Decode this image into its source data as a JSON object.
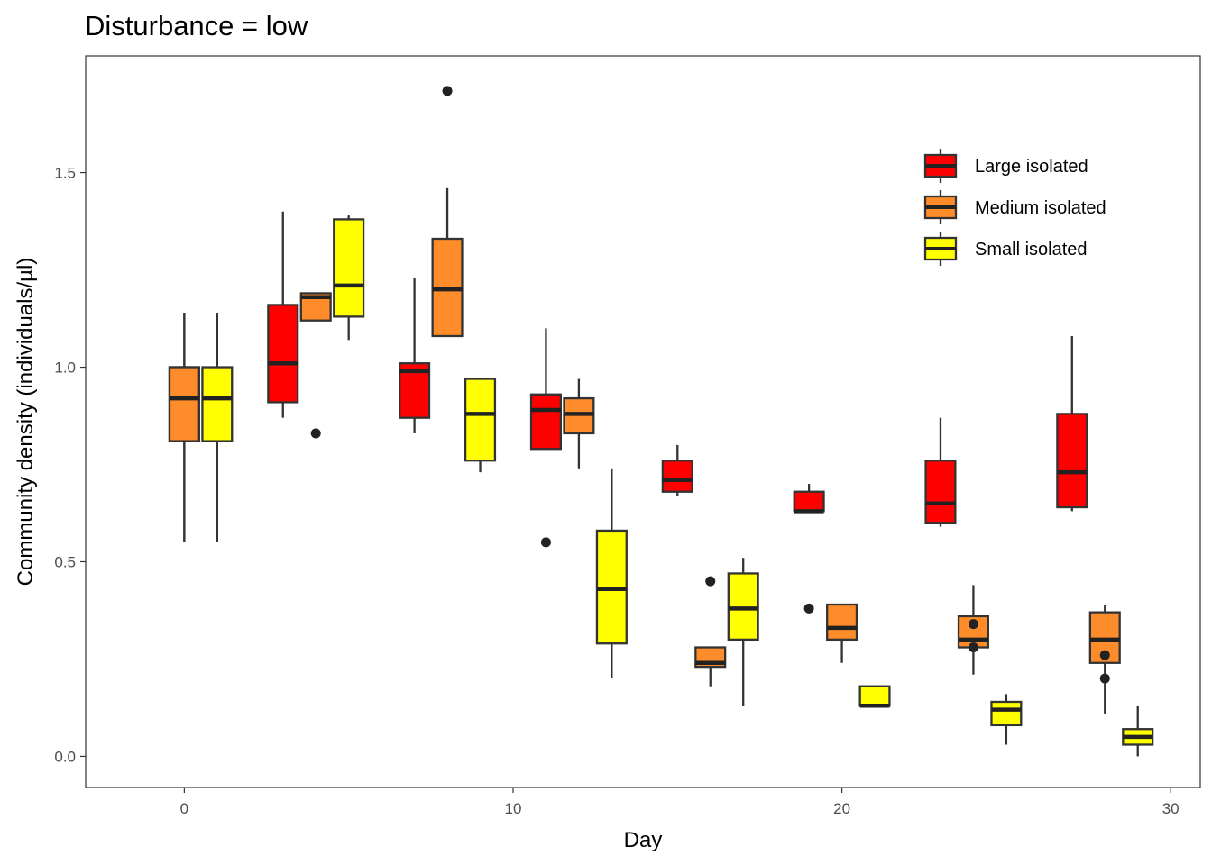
{
  "chart_data": {
    "type": "boxplot",
    "title": "Disturbance = low",
    "xlabel": "Day",
    "ylabel": "Community density (individuals/µl)",
    "xlim": [
      -3,
      30.9
    ],
    "ylim": [
      -0.08,
      1.8
    ],
    "xticks": [
      0,
      10,
      20,
      30
    ],
    "yticks": [
      0.0,
      0.5,
      1.0,
      1.5
    ],
    "ytick_labels": [
      "0.0",
      "0.5",
      "1.0",
      "1.5"
    ],
    "grid": false,
    "legend_position": "top-right",
    "series": [
      {
        "name": "Large isolated",
        "color": "#ff0000",
        "boxes": [
          {
            "day": 0,
            "whisker_low": 0.55,
            "q1": 0.81,
            "median": 0.92,
            "q3": 1.0,
            "whisker_high": 1.14,
            "outliers": []
          },
          {
            "day": 3,
            "whisker_low": 0.87,
            "q1": 0.91,
            "median": 1.01,
            "q3": 1.16,
            "whisker_high": 1.4,
            "outliers": []
          },
          {
            "day": 7,
            "whisker_low": 0.83,
            "q1": 0.87,
            "median": 0.99,
            "q3": 1.01,
            "whisker_high": 1.23,
            "outliers": []
          },
          {
            "day": 11,
            "whisker_low": 0.79,
            "q1": 0.79,
            "median": 0.89,
            "q3": 0.93,
            "whisker_high": 1.1,
            "outliers": [
              0.55
            ]
          },
          {
            "day": 15,
            "whisker_low": 0.67,
            "q1": 0.68,
            "median": 0.71,
            "q3": 0.76,
            "whisker_high": 0.8,
            "outliers": []
          },
          {
            "day": 19,
            "whisker_low": 0.63,
            "q1": 0.63,
            "median": 0.63,
            "q3": 0.68,
            "whisker_high": 0.7,
            "outliers": [
              0.38
            ]
          },
          {
            "day": 23,
            "whisker_low": 0.59,
            "q1": 0.6,
            "median": 0.65,
            "q3": 0.76,
            "whisker_high": 0.87,
            "outliers": []
          },
          {
            "day": 27,
            "whisker_low": 0.63,
            "q1": 0.64,
            "median": 0.73,
            "q3": 0.88,
            "whisker_high": 1.08,
            "outliers": []
          }
        ]
      },
      {
        "name": "Medium isolated",
        "color": "#ff8c2a",
        "boxes": [
          {
            "day": 0,
            "whisker_low": 0.55,
            "q1": 0.81,
            "median": 0.92,
            "q3": 1.0,
            "whisker_high": 1.14,
            "outliers": []
          },
          {
            "day": 4,
            "whisker_low": 1.12,
            "q1": 1.12,
            "median": 1.18,
            "q3": 1.19,
            "whisker_high": 1.19,
            "outliers": [
              0.83
            ]
          },
          {
            "day": 8,
            "whisker_low": 1.08,
            "q1": 1.08,
            "median": 1.2,
            "q3": 1.33,
            "whisker_high": 1.46,
            "outliers": [
              1.71
            ]
          },
          {
            "day": 12,
            "whisker_low": 0.74,
            "q1": 0.83,
            "median": 0.88,
            "q3": 0.92,
            "whisker_high": 0.97,
            "outliers": []
          },
          {
            "day": 16,
            "whisker_low": 0.18,
            "q1": 0.23,
            "median": 0.24,
            "q3": 0.28,
            "whisker_high": 0.28,
            "outliers": [
              0.45
            ]
          },
          {
            "day": 20,
            "whisker_low": 0.24,
            "q1": 0.3,
            "median": 0.33,
            "q3": 0.39,
            "whisker_high": 0.39,
            "outliers": []
          },
          {
            "day": 24,
            "whisker_low": 0.21,
            "q1": 0.28,
            "median": 0.3,
            "q3": 0.36,
            "whisker_high": 0.44,
            "outliers": [
              0.34,
              0.28
            ]
          },
          {
            "day": 28,
            "whisker_low": 0.11,
            "q1": 0.24,
            "median": 0.3,
            "q3": 0.37,
            "whisker_high": 0.39,
            "outliers": [
              0.26,
              0.2
            ]
          }
        ]
      },
      {
        "name": "Small isolated",
        "color": "#ffff00",
        "boxes": [
          {
            "day": 1,
            "whisker_low": 0.55,
            "q1": 0.81,
            "median": 0.92,
            "q3": 1.0,
            "whisker_high": 1.14,
            "outliers": []
          },
          {
            "day": 5,
            "whisker_low": 1.07,
            "q1": 1.13,
            "median": 1.21,
            "q3": 1.38,
            "whisker_high": 1.39,
            "outliers": []
          },
          {
            "day": 9,
            "whisker_low": 0.73,
            "q1": 0.76,
            "median": 0.88,
            "q3": 0.97,
            "whisker_high": 0.97,
            "outliers": []
          },
          {
            "day": 13,
            "whisker_low": 0.2,
            "q1": 0.29,
            "median": 0.43,
            "q3": 0.58,
            "whisker_high": 0.74,
            "outliers": []
          },
          {
            "day": 17,
            "whisker_low": 0.13,
            "q1": 0.3,
            "median": 0.38,
            "q3": 0.47,
            "whisker_high": 0.51,
            "outliers": []
          },
          {
            "day": 21,
            "whisker_low": 0.13,
            "q1": 0.13,
            "median": 0.13,
            "q3": 0.18,
            "whisker_high": 0.18,
            "outliers": []
          },
          {
            "day": 25,
            "whisker_low": 0.03,
            "q1": 0.08,
            "median": 0.12,
            "q3": 0.14,
            "whisker_high": 0.16,
            "outliers": []
          },
          {
            "day": 29,
            "whisker_low": 0.0,
            "q1": 0.03,
            "median": 0.05,
            "q3": 0.07,
            "whisker_high": 0.13,
            "outliers": []
          }
        ]
      }
    ]
  }
}
